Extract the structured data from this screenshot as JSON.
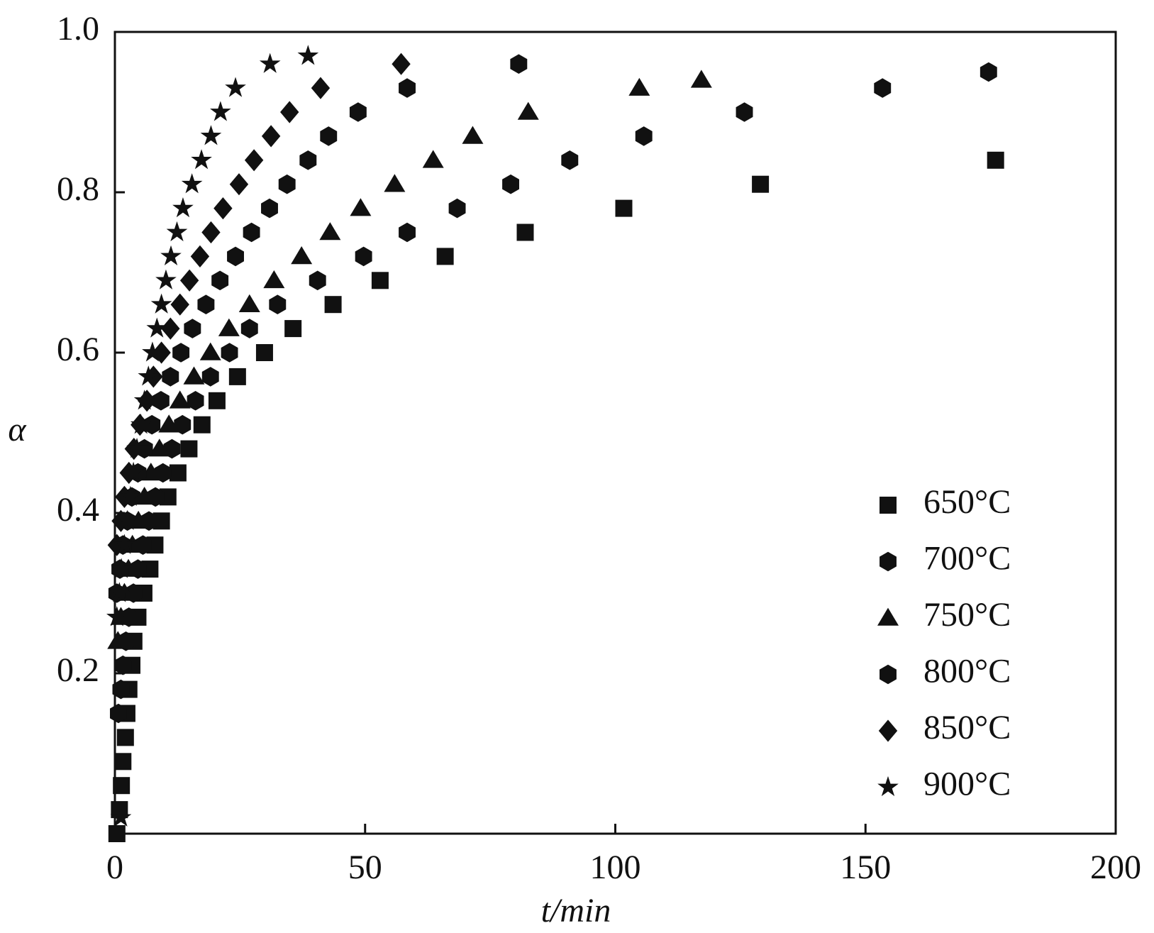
{
  "chart_data": {
    "type": "scatter",
    "xlabel": "t/min",
    "ylabel": "α",
    "xlim": [
      0,
      200
    ],
    "xticks": [
      0,
      50,
      100,
      150,
      200
    ],
    "ylim": [
      0,
      1
    ],
    "yticks": [
      0.2,
      0.4,
      0.6,
      {
        "value": 1,
        "label": "1.0"
      },
      0.8
    ],
    "legend": "lower right",
    "series": [
      {
        "name": "650°C",
        "marker": "square",
        "color": "#111111",
        "x": [
          0.4,
          0.9,
          1.3,
          1.6,
          2.1,
          2.4,
          2.8,
          3.4,
          3.8,
          4.6,
          5.8,
          7.0,
          8.0,
          9.3,
          10.6,
          12.6,
          14.8,
          17.4,
          20.4,
          24.5,
          29.9,
          35.6,
          43.6,
          53,
          66,
          82,
          101.7,
          129,
          176
        ],
        "values": [
          0,
          0.03,
          0.06,
          0.09,
          0.12,
          0.15,
          0.18,
          0.21,
          0.24,
          0.27,
          0.3,
          0.33,
          0.36,
          0.39,
          0.42,
          0.45,
          0.48,
          0.51,
          0.54,
          0.57,
          0.6,
          0.63,
          0.66,
          0.69,
          0.72,
          0.75,
          0.78,
          0.81,
          0.84
        ]
      },
      {
        "name": "700°C",
        "marker": "hexagon",
        "color": "#111111",
        "x": [
          0.7,
          1.2,
          1.6,
          2.2,
          2.8,
          3.7,
          4.6,
          5.6,
          6.8,
          8.1,
          9.6,
          11.4,
          13.5,
          16.1,
          19.1,
          22.9,
          26.9,
          32.5,
          40.5,
          49.7,
          58.4,
          68.4,
          79.1,
          90.9,
          105.7,
          125.8,
          153.4,
          174.6
        ],
        "values": [
          0.15,
          0.18,
          0.21,
          0.24,
          0.27,
          0.3,
          0.33,
          0.36,
          0.39,
          0.42,
          0.45,
          0.48,
          0.51,
          0.54,
          0.57,
          0.6,
          0.63,
          0.66,
          0.69,
          0.72,
          0.75,
          0.78,
          0.81,
          0.84,
          0.87,
          0.9,
          0.93,
          0.95
        ]
      },
      {
        "name": "750°C",
        "marker": "triangle",
        "color": "#111111",
        "x": [
          0.6,
          1.2,
          1.9,
          2.7,
          3.5,
          4.7,
          5.9,
          7.2,
          8.9,
          10.8,
          13.0,
          15.8,
          19.1,
          22.8,
          26.9,
          31.8,
          37.3,
          43.0,
          49.1,
          55.9,
          63.6,
          71.5,
          82.6,
          104.8,
          117.2
        ],
        "values": [
          0.24,
          0.27,
          0.3,
          0.33,
          0.36,
          0.39,
          0.42,
          0.45,
          0.48,
          0.51,
          0.54,
          0.57,
          0.6,
          0.63,
          0.66,
          0.69,
          0.72,
          0.75,
          0.78,
          0.81,
          0.84,
          0.87,
          0.9,
          0.93,
          0.94
        ]
      },
      {
        "name": "800°C",
        "marker": "hexagon",
        "color": "#111111",
        "x": [
          0.4,
          1.0,
          1.6,
          2.5,
          3.4,
          4.6,
          5.9,
          7.4,
          9.2,
          11.1,
          13.2,
          15.5,
          18.2,
          21.0,
          24.1,
          27.3,
          30.9,
          34.4,
          38.6,
          42.7,
          48.6,
          58.4,
          80.7
        ],
        "values": [
          0.3,
          0.33,
          0.36,
          0.39,
          0.42,
          0.45,
          0.48,
          0.51,
          0.54,
          0.57,
          0.6,
          0.63,
          0.66,
          0.69,
          0.72,
          0.75,
          0.78,
          0.81,
          0.84,
          0.87,
          0.9,
          0.93,
          0.96
        ]
      },
      {
        "name": "850°C",
        "marker": "diamond",
        "color": "#111111",
        "x": [
          0.4,
          1.2,
          1.9,
          2.8,
          3.8,
          5.0,
          6.4,
          7.7,
          9.3,
          11.1,
          13.0,
          14.9,
          17.0,
          19.2,
          21.6,
          24.8,
          27.8,
          31.2,
          34.9,
          41.1,
          57.2
        ],
        "values": [
          0.36,
          0.39,
          0.42,
          0.45,
          0.48,
          0.51,
          0.54,
          0.57,
          0.6,
          0.63,
          0.66,
          0.69,
          0.72,
          0.75,
          0.78,
          0.81,
          0.84,
          0.87,
          0.9,
          0.93,
          0.96
        ]
      },
      {
        "name": "900°C",
        "marker": "star",
        "color": "#111111",
        "x": [
          1.2,
          0.4,
          0.9,
          1.3,
          1.9,
          2.5,
          3.1,
          3.7,
          4.4,
          5.2,
          5.9,
          6.7,
          7.5,
          8.4,
          9.3,
          10.2,
          11.2,
          12.4,
          13.6,
          15.4,
          17.3,
          19.2,
          21.1,
          24.1,
          31.0,
          38.6
        ],
        "values": [
          0.02,
          0.27,
          0.3,
          0.33,
          0.36,
          0.39,
          0.42,
          0.45,
          0.48,
          0.51,
          0.54,
          0.57,
          0.6,
          0.63,
          0.66,
          0.69,
          0.72,
          0.75,
          0.78,
          0.81,
          0.84,
          0.87,
          0.9,
          0.93,
          0.96,
          0.97
        ]
      }
    ]
  }
}
